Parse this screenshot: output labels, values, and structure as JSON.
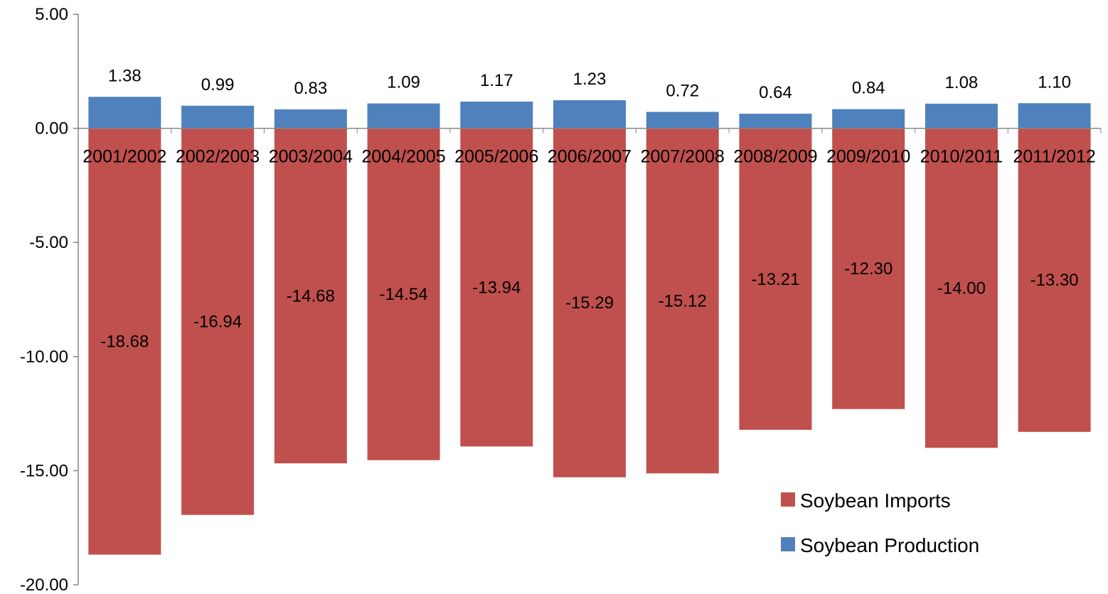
{
  "chart_data": {
    "type": "bar",
    "stacked": true,
    "categories": [
      "2001/2002",
      "2002/2003",
      "2003/2004",
      "2004/2005",
      "2005/2006",
      "2006/2007",
      "2007/2008",
      "2008/2009",
      "2009/2010",
      "2010/2011",
      "2011/2012"
    ],
    "series": [
      {
        "name": "Soybean Production",
        "color": "#4F81BD",
        "values": [
          1.38,
          0.99,
          0.83,
          1.09,
          1.17,
          1.23,
          0.72,
          0.64,
          0.84,
          1.08,
          1.1
        ]
      },
      {
        "name": "Soybean Imports",
        "color": "#C0504D",
        "values": [
          -18.68,
          -16.94,
          -14.68,
          -14.54,
          -13.94,
          -15.29,
          -15.12,
          -13.21,
          -12.3,
          -14.0,
          -13.3
        ]
      }
    ],
    "data_labels": {
      "production": [
        "1.38",
        "0.99",
        "0.83",
        "1.09",
        "1.17",
        "1.23",
        "0.72",
        "0.64",
        "0.84",
        "1.08",
        "1.10"
      ],
      "imports": [
        "-18.68",
        "-16.94",
        "-14.68",
        "-14.54",
        "-13.94",
        "-15.29",
        "-15.12",
        "-13.21",
        "-12.30",
        "-14.00",
        "-13.30"
      ]
    },
    "ylim": [
      -20,
      5
    ],
    "yticks": [
      "5.00",
      "0.00",
      "-5.00",
      "-10.00",
      "-15.00",
      "-20.00"
    ],
    "ytick_values": [
      5,
      0,
      -5,
      -10,
      -15,
      -20
    ],
    "grid": false,
    "legend": {
      "position": "bottom-right",
      "entries": [
        {
          "label": "Soybean Imports",
          "color": "#C0504D"
        },
        {
          "label": "Soybean Production",
          "color": "#4F81BD"
        }
      ]
    },
    "title": "",
    "xlabel": "",
    "ylabel": ""
  }
}
